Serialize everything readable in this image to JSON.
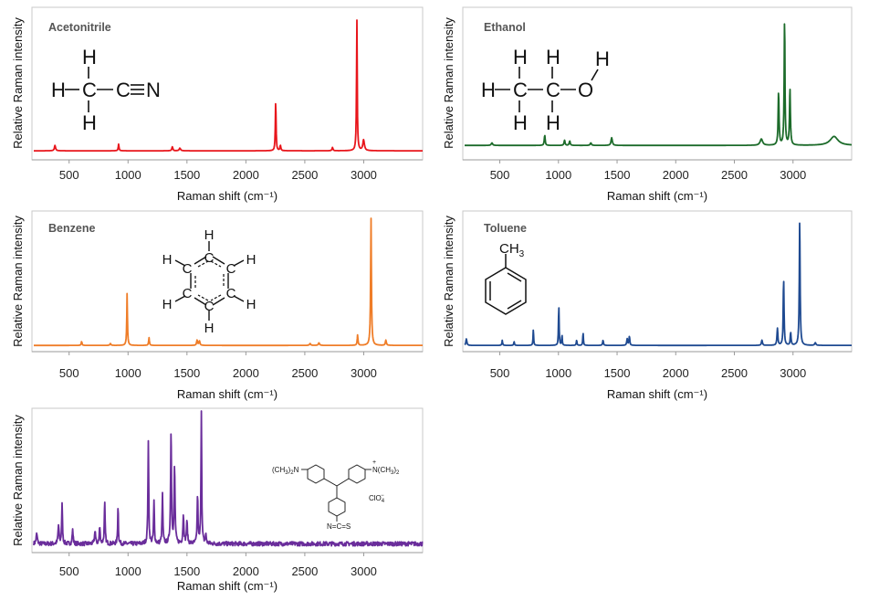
{
  "chart_data": [
    {
      "type": "line",
      "title": "Acetonitrile",
      "xlabel": "Raman shift (cm⁻¹)",
      "ylabel": "Relative Raman intensity",
      "xlim": [
        200,
        3500
      ],
      "ylim": [
        0,
        1
      ],
      "xticks": [
        500,
        1000,
        1500,
        2000,
        2500,
        3000
      ],
      "xtick_labels": [
        "500",
        "1000",
        "1500",
        "2000",
        "2500",
        "3000"
      ],
      "color": "#e8151b",
      "baseline": 0.02,
      "peaks": [
        [
          380,
          0.04,
          12
        ],
        [
          920,
          0.05,
          8
        ],
        [
          1376,
          0.03,
          10
        ],
        [
          1440,
          0.02,
          14
        ],
        [
          2253,
          0.38,
          7
        ],
        [
          2293,
          0.04,
          9
        ],
        [
          2735,
          0.025,
          10
        ],
        [
          2942,
          1.0,
          7
        ],
        [
          2999,
          0.08,
          16
        ]
      ],
      "structure": {
        "name": "acetonitrile",
        "atoms": {
          "H": "H",
          "C": "C",
          "N": "N"
        }
      }
    },
    {
      "type": "line",
      "title": "Ethanol",
      "xlabel": "Raman shift (cm⁻¹)",
      "ylabel": "Relative Raman intensity",
      "xlim": [
        200,
        3500
      ],
      "ylim": [
        0,
        1
      ],
      "xticks": [
        500,
        1000,
        1500,
        2000,
        2500,
        3000
      ],
      "xtick_labels": [
        "500",
        "1000",
        "1500",
        "2000",
        "2500",
        "3000"
      ],
      "color": "#1c6b2a",
      "baseline": 0.02,
      "peaks": [
        [
          433,
          0.02,
          14
        ],
        [
          883,
          0.08,
          9
        ],
        [
          1052,
          0.04,
          10
        ],
        [
          1096,
          0.035,
          10
        ],
        [
          1276,
          0.02,
          12
        ],
        [
          1454,
          0.06,
          13
        ],
        [
          2730,
          0.05,
          25
        ],
        [
          2877,
          0.42,
          9
        ],
        [
          2928,
          1.0,
          8
        ],
        [
          2974,
          0.45,
          9
        ],
        [
          3350,
          0.07,
          80
        ]
      ],
      "structure": {
        "name": "ethanol",
        "atoms": {
          "H": "H",
          "C": "C",
          "O": "O"
        }
      }
    },
    {
      "type": "line",
      "title": "Benzene",
      "xlabel": "Raman shift (cm⁻¹)",
      "ylabel": "Relative Raman intensity",
      "xlim": [
        200,
        3500
      ],
      "ylim": [
        0,
        1
      ],
      "xticks": [
        500,
        1000,
        1500,
        2000,
        2500,
        3000
      ],
      "xtick_labels": [
        "500",
        "1000",
        "1500",
        "2000",
        "2500",
        "3000"
      ],
      "color": "#ef7d28",
      "baseline": 0.02,
      "peaks": [
        [
          606,
          0.03,
          8
        ],
        [
          850,
          0.015,
          10
        ],
        [
          992,
          0.4,
          7
        ],
        [
          1178,
          0.06,
          8
        ],
        [
          1586,
          0.04,
          10
        ],
        [
          1606,
          0.035,
          10
        ],
        [
          2545,
          0.015,
          12
        ],
        [
          2620,
          0.02,
          12
        ],
        [
          2948,
          0.08,
          8
        ],
        [
          3062,
          1.0,
          8
        ],
        [
          3188,
          0.04,
          10
        ]
      ],
      "structure": {
        "name": "benzene",
        "atoms": {
          "H": "H",
          "C": "C"
        }
      }
    },
    {
      "type": "line",
      "title": "Toluene",
      "xlabel": "Raman shift (cm⁻¹)",
      "ylabel": "Relative Raman intensity",
      "xlim": [
        200,
        3500
      ],
      "ylim": [
        0,
        1
      ],
      "xticks": [
        500,
        1000,
        1500,
        2000,
        2500,
        3000
      ],
      "xtick_labels": [
        "500",
        "1000",
        "1500",
        "2000",
        "2500",
        "3000"
      ],
      "color": "#1f4a91",
      "baseline": 0.02,
      "peaks": [
        [
          215,
          0.05,
          10
        ],
        [
          521,
          0.04,
          7
        ],
        [
          622,
          0.03,
          7
        ],
        [
          786,
          0.13,
          6
        ],
        [
          1003,
          0.32,
          6
        ],
        [
          1030,
          0.08,
          6
        ],
        [
          1155,
          0.04,
          7
        ],
        [
          1210,
          0.1,
          6
        ],
        [
          1380,
          0.04,
          8
        ],
        [
          1586,
          0.05,
          9
        ],
        [
          1605,
          0.07,
          8
        ],
        [
          2735,
          0.04,
          10
        ],
        [
          2867,
          0.13,
          9
        ],
        [
          2920,
          0.52,
          8
        ],
        [
          2980,
          0.1,
          8
        ],
        [
          3057,
          1.0,
          8
        ],
        [
          3190,
          0.02,
          12
        ]
      ],
      "structure": {
        "name": "toluene",
        "substituent": "CH",
        "subscript": "3"
      }
    },
    {
      "type": "line",
      "title": "",
      "xlabel": "Raman shift (cm⁻¹)",
      "ylabel": "Relative Raman intensity",
      "xlim": [
        200,
        3500
      ],
      "ylim": [
        0,
        1
      ],
      "xticks": [
        500,
        1000,
        1500,
        2000,
        2500,
        3000
      ],
      "xtick_labels": [
        "500",
        "1000",
        "1500",
        "2000",
        "2500",
        "3000"
      ],
      "color": "#6a2d9b",
      "baseline": 0.05,
      "noise": 0.015,
      "peaks": [
        [
          225,
          0.07,
          12
        ],
        [
          410,
          0.13,
          10
        ],
        [
          440,
          0.28,
          8
        ],
        [
          530,
          0.1,
          9
        ],
        [
          720,
          0.1,
          9
        ],
        [
          760,
          0.12,
          9
        ],
        [
          802,
          0.3,
          8
        ],
        [
          915,
          0.28,
          7
        ],
        [
          1172,
          0.72,
          8
        ],
        [
          1220,
          0.3,
          8
        ],
        [
          1292,
          0.35,
          8
        ],
        [
          1365,
          0.82,
          9
        ],
        [
          1395,
          0.55,
          9
        ],
        [
          1470,
          0.2,
          10
        ],
        [
          1500,
          0.15,
          10
        ],
        [
          1590,
          0.35,
          8
        ],
        [
          1622,
          1.0,
          7
        ],
        [
          1660,
          0.06,
          10
        ]
      ],
      "structure": {
        "left_group": "(CH",
        "left_sub": "3",
        "left_tail": ")",
        "left_tail_sub": "2",
        "left_n": "N",
        "right_n": "N(CH",
        "right_sub": "3",
        "right_tail": ")",
        "right_tail_sub": "2",
        "plus": "+",
        "anion": "ClO",
        "anion_sub": "4",
        "anion_charge": "−",
        "isothio": "N=C=S"
      }
    }
  ]
}
